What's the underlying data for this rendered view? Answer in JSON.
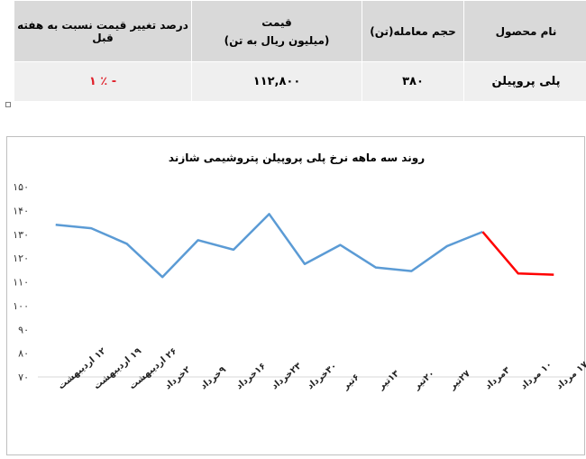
{
  "table": {
    "headers": {
      "product": "نام محصول",
      "volume": "حجم معامله(تن)",
      "price_line1": "قیمت",
      "price_line2": "(میلیون ریال به تن)",
      "change": "درصد تغییر قیمت نسبت به هفته قبل"
    },
    "row": {
      "product": "پلی پروپیلن",
      "volume": "۳۸۰",
      "price": "۱۱۲,۸۰۰",
      "change": "- ٪ ۱"
    }
  },
  "chart_data": {
    "type": "line",
    "title": "روند سه ماهه نرخ پلی پروپیلن پتروشیمی شازند",
    "categories": [
      "۱۲ اردیبهشت",
      "۱۹ اردیبهشت",
      "۲۶ اردیبهشت",
      "۲خرداد",
      "۹خرداد",
      "۱۶خرداد",
      "۲۳خرداد",
      "۳۰خرداد",
      "۶تیر",
      "۱۳تیر",
      "۲۰تیر",
      "۲۷تیر",
      "۳مرداد",
      "۱۰ مرداد",
      "۱۷ مرداد"
    ],
    "values": [
      134,
      132.5,
      126,
      112,
      127.5,
      123.5,
      138.5,
      117.5,
      125.5,
      116,
      114.5,
      125,
      131,
      113.5,
      113
    ],
    "highlight_from_index": 12,
    "y_ticks": [
      "۷۰",
      "۸۰",
      "۹۰",
      "۱۰۰",
      "۱۱۰",
      "۱۲۰",
      "۱۳۰",
      "۱۴۰",
      "۱۵۰"
    ],
    "ylim": [
      70,
      150
    ],
    "grid": false,
    "colors": {
      "line": "#5b9bd5",
      "highlight": "#ff0000"
    }
  }
}
